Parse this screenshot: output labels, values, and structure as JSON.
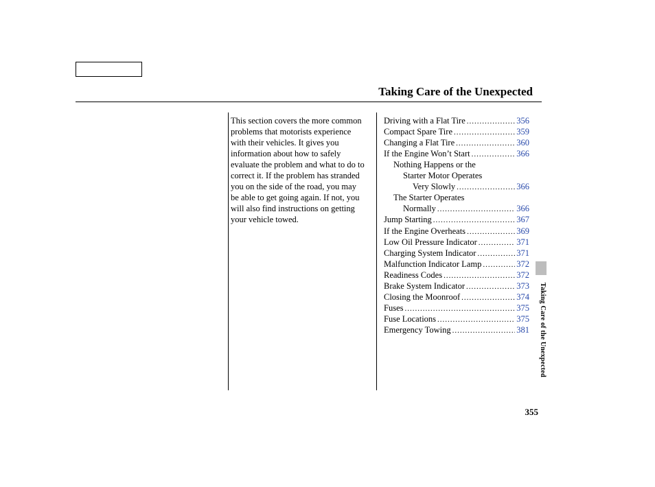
{
  "header": {
    "title": "Taking Care of the Unexpected"
  },
  "intro": {
    "text": "This section covers the more common problems that motorists experience with their vehicles. It gives you information about how to safely evaluate the problem and what to do to correct it. If the problem has stranded you on the side of the road, you may be able to get going again. If not, you will also find instructions on getting your vehicle towed."
  },
  "toc": [
    {
      "label": "Driving with a Flat Tire",
      "page": "356",
      "indent": 0
    },
    {
      "label": "Compact Spare Tire",
      "page": "359",
      "indent": 0
    },
    {
      "label": "Changing a Flat Tire",
      "page": "360",
      "indent": 0
    },
    {
      "label": "If the Engine Won’t Start",
      "page": "366",
      "indent": 0
    },
    {
      "label": "Nothing Happens or the",
      "page": null,
      "indent": 1
    },
    {
      "label": "Starter Motor Operates",
      "page": null,
      "indent": 2
    },
    {
      "label": "Very Slowly",
      "page": "366",
      "indent": 3
    },
    {
      "label": "The Starter Operates",
      "page": null,
      "indent": 1
    },
    {
      "label": "Normally",
      "page": "366",
      "indent": 2
    },
    {
      "label": "Jump Starting",
      "page": "367",
      "indent": 0
    },
    {
      "label": "If the Engine Overheats",
      "page": "369",
      "indent": 0
    },
    {
      "label": "Low Oil Pressure Indicator",
      "page": "371",
      "indent": 0
    },
    {
      "label": "Charging System Indicator",
      "page": "371",
      "indent": 0
    },
    {
      "label": "Malfunction Indicator Lamp",
      "page": "372",
      "indent": 0
    },
    {
      "label": "Readiness Codes",
      "page": "372",
      "indent": 0
    },
    {
      "label": "Brake System Indicator",
      "page": "373",
      "indent": 0
    },
    {
      "label": "Closing the Moonroof",
      "page": "374",
      "indent": 0
    },
    {
      "label": "Fuses",
      "page": "375",
      "indent": 0
    },
    {
      "label": "Fuse Locations",
      "page": "375",
      "indent": 0
    },
    {
      "label": "Emergency Towing",
      "page": "381",
      "indent": 0
    }
  ],
  "sidebar": {
    "label": "Taking Care of the Unexpected"
  },
  "page_number": "355",
  "colors": {
    "link": "#2748aa",
    "text": "#000000",
    "tab": "#bdbdbd",
    "bg": "#ffffff"
  },
  "fonts": {
    "body_size_pt": 10,
    "title_size_pt": 13,
    "sidebar_size_pt": 8
  }
}
